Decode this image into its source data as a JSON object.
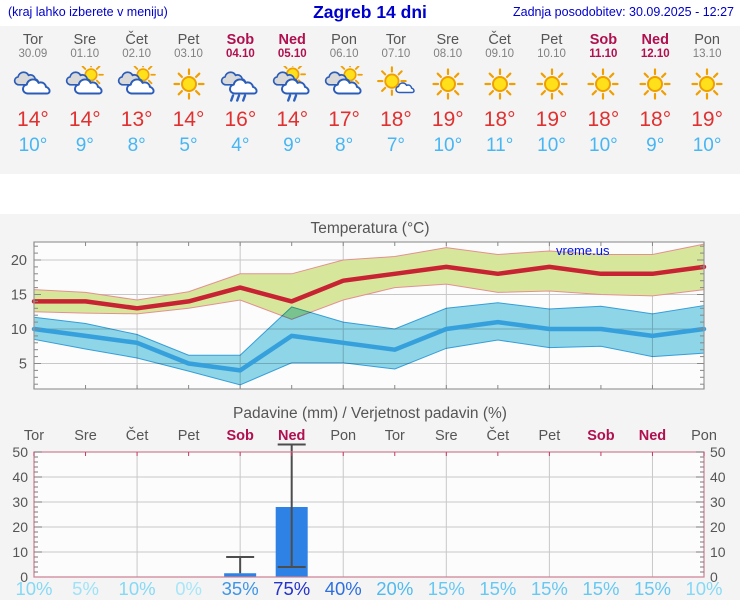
{
  "header": {
    "left_note": "(kraj lahko izberete v meniju)",
    "title": "Zagreb 14 dni",
    "updated": "Zadnja posodobitev: 30.09.2025 - 12:27"
  },
  "colors": {
    "header_blue": "#0000cc",
    "weekend": "#b0104f",
    "weekday": "#555555",
    "date_gray": "#808080",
    "tmax_red": "#e03131",
    "tmin_blue": "#47b6f3",
    "line_max": "#c82333",
    "line_min": "#36a0dc",
    "band_max": "#d6e79b",
    "band_max_edge": "#e59090",
    "band_min": "#8fd8ea",
    "bar_blue": "#2e82e6",
    "whisker": "#4d4d4d",
    "frame_gray": "#999999",
    "frame_pink": "#cc7f93",
    "grid": "#c8c8c8",
    "title_gray": "#555555",
    "watermark_blue": "#0014e6",
    "strip_bg": "#f4f4f4",
    "chart_bg": "#fcfcfc"
  },
  "forecast": {
    "days": [
      {
        "name": "Tor",
        "date": "30.09",
        "weekend": false,
        "icon": "cloudy",
        "tmax": "14°",
        "tmin": "10°"
      },
      {
        "name": "Sre",
        "date": "01.10",
        "weekend": false,
        "icon": "partly-cloudy",
        "tmax": "14°",
        "tmin": "9°"
      },
      {
        "name": "Čet",
        "date": "02.10",
        "weekend": false,
        "icon": "partly-cloudy",
        "tmax": "13°",
        "tmin": "8°"
      },
      {
        "name": "Pet",
        "date": "03.10",
        "weekend": false,
        "icon": "sunny",
        "tmax": "14°",
        "tmin": "5°"
      },
      {
        "name": "Sob",
        "date": "04.10",
        "weekend": true,
        "icon": "rain",
        "tmax": "16°",
        "tmin": "4°"
      },
      {
        "name": "Ned",
        "date": "05.10",
        "weekend": true,
        "icon": "sun-rain",
        "tmax": "14°",
        "tmin": "9°"
      },
      {
        "name": "Pon",
        "date": "06.10",
        "weekend": false,
        "icon": "partly-cloudy",
        "tmax": "17°",
        "tmin": "8°"
      },
      {
        "name": "Tor",
        "date": "07.10",
        "weekend": false,
        "icon": "mostly-sunny",
        "tmax": "18°",
        "tmin": "7°"
      },
      {
        "name": "Sre",
        "date": "08.10",
        "weekend": false,
        "icon": "sunny",
        "tmax": "19°",
        "tmin": "10°"
      },
      {
        "name": "Čet",
        "date": "09.10",
        "weekend": false,
        "icon": "sunny",
        "tmax": "18°",
        "tmin": "11°"
      },
      {
        "name": "Pet",
        "date": "10.10",
        "weekend": false,
        "icon": "sunny",
        "tmax": "19°",
        "tmin": "10°"
      },
      {
        "name": "Sob",
        "date": "11.10",
        "weekend": true,
        "icon": "sunny",
        "tmax": "18°",
        "tmin": "10°"
      },
      {
        "name": "Ned",
        "date": "12.10",
        "weekend": true,
        "icon": "sunny",
        "tmax": "18°",
        "tmin": "9°"
      },
      {
        "name": "Pon",
        "date": "13.10",
        "weekend": false,
        "icon": "sunny",
        "tmax": "19°",
        "tmin": "10°"
      }
    ]
  },
  "chart_data": [
    {
      "type": "line",
      "title": "Temperatura (°C)",
      "watermark": "vreme.us",
      "categories": [
        "Tor",
        "Sre",
        "Čet",
        "Pet",
        "Sob",
        "Ned",
        "Pon",
        "Tor",
        "Sre",
        "Čet",
        "Pet",
        "Sob",
        "Ned",
        "Pon"
      ],
      "yticks": [
        5,
        10,
        15,
        20
      ],
      "ylim": [
        1.3,
        22.6
      ],
      "grid": true,
      "series": [
        {
          "name": "max",
          "values": [
            14,
            14,
            13,
            14,
            16,
            14,
            17,
            18,
            19,
            18,
            19,
            18,
            18,
            19
          ]
        },
        {
          "name": "max_upper",
          "values": [
            15.7,
            15.3,
            14.2,
            15.4,
            18,
            18,
            20,
            20.5,
            21.8,
            20.8,
            21.3,
            20.8,
            20.8,
            22.3
          ]
        },
        {
          "name": "max_lower",
          "values": [
            12.5,
            12.3,
            12.2,
            13,
            14.2,
            11.4,
            14.2,
            16,
            16.5,
            15.3,
            15.5,
            15,
            14.8,
            15.7
          ]
        },
        {
          "name": "min",
          "values": [
            10,
            9,
            8,
            5,
            4,
            9,
            8,
            7,
            10,
            11,
            10,
            10,
            9,
            10
          ]
        },
        {
          "name": "min_upper",
          "values": [
            11.7,
            10.8,
            9.2,
            6.2,
            6.2,
            13.2,
            11,
            10,
            13,
            13.8,
            12.9,
            13.3,
            12.2,
            13.4
          ]
        },
        {
          "name": "min_lower",
          "values": [
            8.5,
            7.1,
            5.8,
            3.9,
            1.9,
            5.1,
            5.1,
            4.2,
            7.2,
            8.4,
            7.3,
            7.5,
            6,
            6.5
          ]
        }
      ]
    },
    {
      "type": "bar",
      "title": "Padavine (mm) / Verjetnost padavin (%)",
      "categories": [
        "Tor",
        "Sre",
        "Čet",
        "Pet",
        "Sob",
        "Ned",
        "Pon",
        "Tor",
        "Sre",
        "Čet",
        "Pet",
        "Sob",
        "Ned",
        "Pon"
      ],
      "weekend_indices": [
        4,
        5,
        11,
        12
      ],
      "yticks": [
        0,
        10,
        20,
        30,
        40,
        50
      ],
      "ylim": [
        0,
        50
      ],
      "values": [
        0,
        0,
        0,
        0,
        1.5,
        28,
        0,
        0,
        0,
        0,
        0,
        0,
        0,
        0
      ],
      "error_bars": [
        {
          "index": 4,
          "low": 1.5,
          "high": 8,
          "low_cap": false
        },
        {
          "index": 5,
          "low": 4,
          "high": 53,
          "low_cap": true
        }
      ],
      "probabilities": [
        "10%",
        "5%",
        "10%",
        "0%",
        "35%",
        "75%",
        "40%",
        "20%",
        "15%",
        "15%",
        "15%",
        "15%",
        "15%",
        "10%"
      ],
      "prob_colors": [
        "#86d9f5",
        "#9fe2f8",
        "#86d9f5",
        "#a8e6f9",
        "#3e95e6",
        "#2433cc",
        "#2e6fdf",
        "#4fbaef",
        "#67c8f2",
        "#67c8f2",
        "#67c8f2",
        "#67c8f2",
        "#67c8f2",
        "#86d9f5"
      ]
    }
  ]
}
